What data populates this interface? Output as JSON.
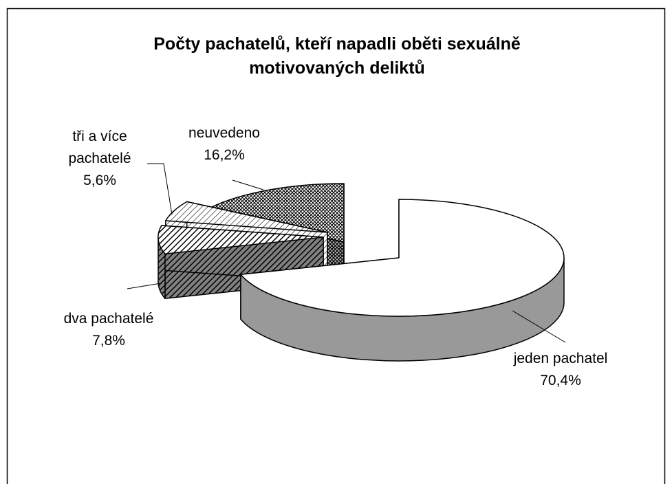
{
  "chart_data": {
    "type": "pie3d",
    "title": "Počty pachatelů, kteří napadli oběti sexuálně motivovaných deliktů",
    "categories": [
      "jeden pachatel",
      "dva pachatelé",
      "tři a více pachatelé",
      "neuvedeno"
    ],
    "values": [
      70.4,
      7.8,
      5.6,
      16.2
    ],
    "value_labels": [
      "70,4%",
      "7,8%",
      "5,6%",
      "16,2%"
    ],
    "colors": [
      "#ffffff",
      "#808080",
      "#ffffff",
      "#c0c0c0"
    ]
  }
}
